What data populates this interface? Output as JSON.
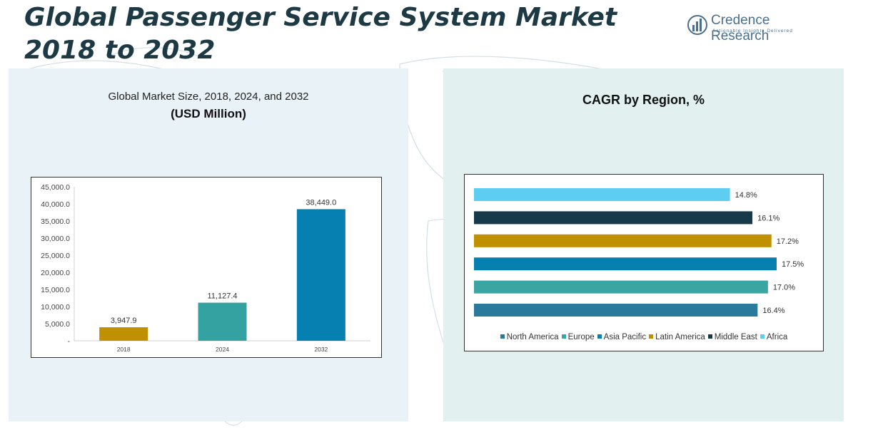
{
  "title": "Global Passenger Service System Market 2018 to 2032",
  "logo": {
    "name": "Credence Research",
    "tagline": "Actionable Insights Delivered",
    "color": "#4a6f8c"
  },
  "left_panel": {
    "subtitle": "Global Market Size, 2018, 2024, and 2032",
    "unit": "(USD Million)"
  },
  "right_panel": {
    "title": "CAGR by Region, %"
  },
  "chart_data": [
    {
      "type": "bar",
      "title": "Global Market Size, 2018, 2024, and 2032",
      "ylabel": "(USD Million)",
      "categories": [
        "2018",
        "2024",
        "2032"
      ],
      "values": [
        3947.9,
        11127.4,
        38449.0
      ],
      "value_labels": [
        "3,947.9",
        "11,127.4",
        "38,449.0"
      ],
      "colors": [
        "#c09000",
        "#35a2a2",
        "#0580b0"
      ],
      "ylim": [
        0,
        45000
      ],
      "yticks": [
        0,
        5000,
        10000,
        15000,
        20000,
        25000,
        30000,
        35000,
        40000,
        45000
      ],
      "ytick_labels": [
        "-",
        "5,000.0",
        "10,000.0",
        "15,000.0",
        "20,000.0",
        "25,000.0",
        "30,000.0",
        "35,000.0",
        "40,000.0",
        "45,000.0"
      ],
      "grid": false
    },
    {
      "type": "bar",
      "orientation": "horizontal",
      "title": "CAGR by Region, %",
      "series": [
        {
          "name": "North America",
          "value": 16.4,
          "label": "16.4%",
          "color": "#2a7b9b"
        },
        {
          "name": "Europe",
          "value": 17.0,
          "label": "17.0%",
          "color": "#3aa6a4"
        },
        {
          "name": "Asia Pacific",
          "value": 17.5,
          "label": "17.5%",
          "color": "#0580b0"
        },
        {
          "name": "Latin America",
          "value": 17.2,
          "label": "17.2%",
          "color": "#c09000"
        },
        {
          "name": "Middle East",
          "value": 16.1,
          "label": "16.1%",
          "color": "#173a4a"
        },
        {
          "name": "Africa",
          "value": 14.8,
          "label": "14.8%",
          "color": "#5ecdf2"
        }
      ],
      "xlim": [
        0,
        17.5
      ],
      "legend": "bottom",
      "grid": false
    }
  ]
}
